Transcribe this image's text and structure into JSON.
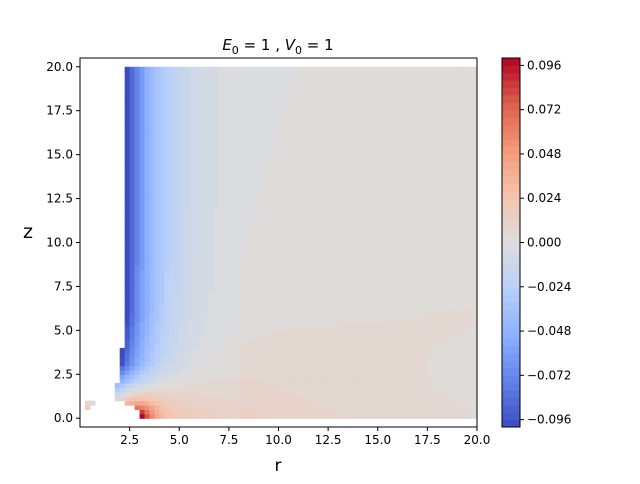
{
  "chart_data": {
    "type": "heatmap",
    "title_parts": [
      "E",
      "0",
      " = 1 , ",
      "V",
      "0",
      " = 1"
    ],
    "xlabel": "r",
    "ylabel": "z",
    "xlim": [
      0,
      20
    ],
    "ylim": [
      -0.5,
      20.5
    ],
    "x_ticks": [
      2.5,
      5.0,
      7.5,
      10.0,
      12.5,
      15.0,
      17.5,
      20.0
    ],
    "x_tick_labels": [
      "2.5",
      "5.0",
      "7.5",
      "10.0",
      "12.5",
      "15.0",
      "17.5",
      "20.0"
    ],
    "y_ticks": [
      0.0,
      2.5,
      5.0,
      7.5,
      10.0,
      12.5,
      15.0,
      17.5,
      20.0
    ],
    "y_tick_labels": [
      "0.0",
      "2.5",
      "5.0",
      "7.5",
      "10.0",
      "12.5",
      "15.0",
      "17.5",
      "20.0"
    ],
    "colorbar": {
      "colormap": "coolwarm",
      "range": [
        -0.1,
        0.1
      ],
      "ticks": [
        -0.096,
        -0.072,
        -0.048,
        -0.024,
        0.0,
        0.024,
        0.048,
        0.072,
        0.096
      ],
      "tick_labels": [
        "−0.096",
        "−0.072",
        "−0.048",
        "−0.024",
        "0.000",
        "0.024",
        "0.048",
        "0.072",
        "0.096"
      ],
      "levels": 50
    },
    "grid": false,
    "field_domain": {
      "r_max": 20,
      "z_min": 0,
      "z_max": 20,
      "boundary_r_at_top": 2.3
    }
  }
}
